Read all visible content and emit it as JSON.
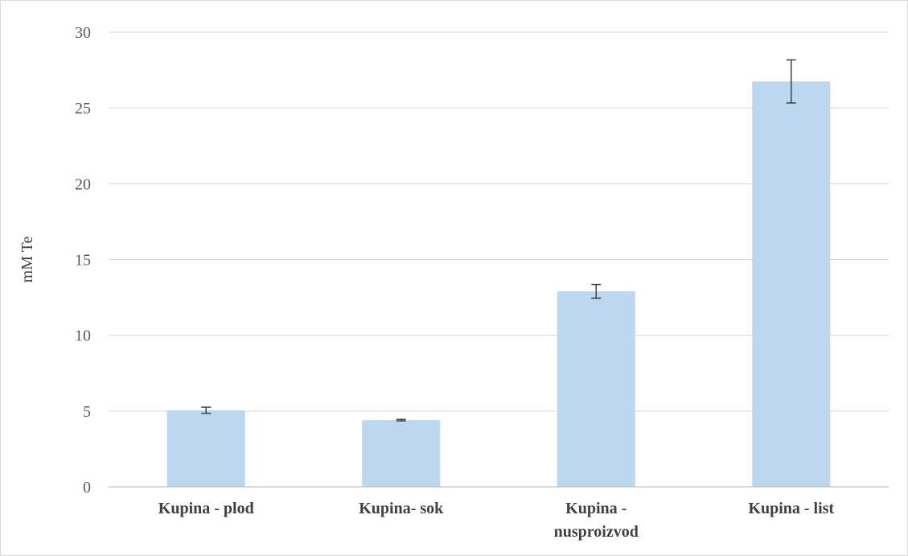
{
  "chart_data": {
    "type": "bar",
    "title": "",
    "xlabel": "",
    "ylabel": "mM Te",
    "ylim": [
      0,
      30
    ],
    "yticks": [
      0,
      5,
      10,
      15,
      20,
      25,
      30
    ],
    "grid": true,
    "categories": [
      [
        "Kupina - plod"
      ],
      [
        "Kupina- sok"
      ],
      [
        "Kupina -",
        "nusproizvod"
      ],
      [
        "Kupina - list"
      ]
    ],
    "series": [
      {
        "values": [
          5.05,
          4.4,
          12.9,
          26.75
        ],
        "errors": [
          0.2,
          0.05,
          0.45,
          1.42
        ],
        "color": "#bdd7ee"
      }
    ],
    "colors": {
      "gridline": "#d9d9d9",
      "axis": "#bfbfbf",
      "error_bar": "#404040"
    }
  }
}
